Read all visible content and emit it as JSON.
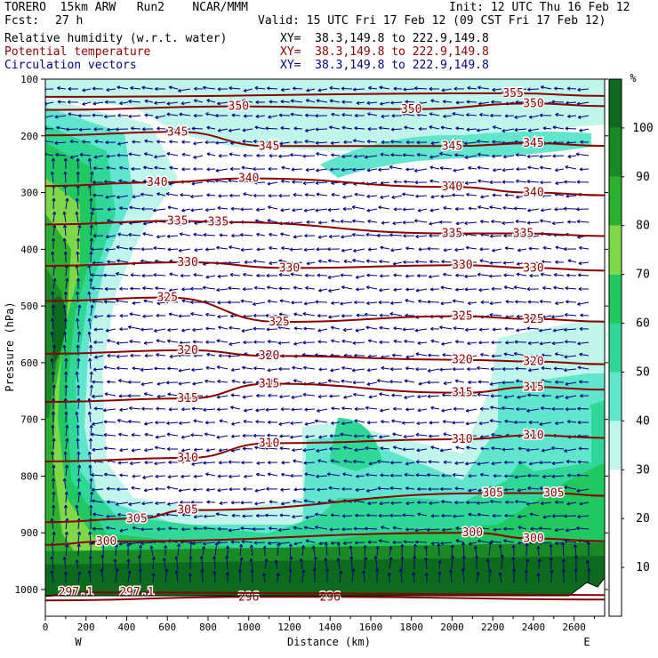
{
  "header": {
    "model": "TORERO  15km ARW   Run2    NCAR/MMM",
    "init": "Init: 12 UTC Thu 16 Feb 12",
    "fcst_label": "Fcst:",
    "fcst_value": "27 h",
    "valid": "Valid: 15 UTC Fri 17 Feb 12 (09 CST Fri 17 Feb 12)"
  },
  "fields": [
    {
      "name": "Relative humidity (w.r.t. water)",
      "xy": "XY=  38.3,149.8 to 222.9,149.8",
      "color": "#000000"
    },
    {
      "name": "Potential temperature",
      "xy": "XY=  38.3,149.8 to 222.9,149.8",
      "color": "#8b0000"
    },
    {
      "name": "Circulation vectors",
      "xy": "XY=  38.3,149.8 to 222.9,149.8",
      "color": "#00007f"
    }
  ],
  "chart_data": {
    "type": "heatmap",
    "xlabel": "Distance (km)",
    "ylabel": "Pressure (hPa)",
    "xlim": [
      0,
      2750
    ],
    "ylim": [
      1040,
      100
    ],
    "x_ticks": [
      "0",
      "200",
      "400",
      "600",
      "800",
      "1000",
      "1200",
      "1400",
      "1600",
      "1800",
      "2000",
      "2200",
      "2400",
      "2600"
    ],
    "y_ticks": [
      "100",
      "200",
      "300",
      "400",
      "500",
      "600",
      "700",
      "800",
      "900",
      "1000"
    ],
    "x_end_labels": {
      "left": "W",
      "right": "E"
    },
    "colorbar": {
      "unit": "%",
      "levels": [
        10,
        20,
        30,
        40,
        50,
        60,
        70,
        80,
        90,
        100
      ],
      "colors": [
        "#ffffff",
        "#ffffff",
        "#ffffff",
        "#bff5ea",
        "#60e6cc",
        "#30d898",
        "#20c860",
        "#7fd848",
        "#2cb030",
        "#1a8a24",
        "#0b6a1c"
      ]
    },
    "theta_isentropes": [
      {
        "value": 296,
        "labels": [
          [
            1000,
            1013
          ],
          [
            1400,
            1013
          ]
        ]
      },
      {
        "value": 297,
        "labels": [
          [
            150,
            1005
          ],
          [
            450,
            1005
          ]
        ],
        "label_text": "297.1"
      },
      {
        "value": 300,
        "labels": [
          [
            300,
            915
          ],
          [
            2100,
            900
          ],
          [
            2400,
            910
          ]
        ]
      },
      {
        "value": 305,
        "labels": [
          [
            450,
            875
          ],
          [
            700,
            860
          ],
          [
            2200,
            830
          ],
          [
            2500,
            830
          ]
        ]
      },
      {
        "value": 310,
        "labels": [
          [
            700,
            768
          ],
          [
            1100,
            742
          ],
          [
            2050,
            735
          ],
          [
            2400,
            728
          ]
        ]
      },
      {
        "value": 315,
        "labels": [
          [
            700,
            663
          ],
          [
            1100,
            637
          ],
          [
            2050,
            653
          ],
          [
            2400,
            643
          ]
        ]
      },
      {
        "value": 320,
        "labels": [
          [
            700,
            578
          ],
          [
            1100,
            588
          ],
          [
            2050,
            595
          ],
          [
            2400,
            598
          ]
        ]
      },
      {
        "value": 325,
        "labels": [
          [
            600,
            485
          ],
          [
            1150,
            528
          ],
          [
            2050,
            518
          ],
          [
            2400,
            523
          ]
        ]
      },
      {
        "value": 330,
        "labels": [
          [
            700,
            423
          ],
          [
            1200,
            433
          ],
          [
            2050,
            428
          ],
          [
            2400,
            433
          ]
        ]
      },
      {
        "value": 335,
        "labels": [
          [
            650,
            350
          ],
          [
            850,
            352
          ],
          [
            2000,
            372
          ],
          [
            2350,
            372
          ]
        ]
      },
      {
        "value": 340,
        "labels": [
          [
            550,
            282
          ],
          [
            1000,
            275
          ],
          [
            2000,
            290
          ],
          [
            2400,
            300
          ]
        ]
      },
      {
        "value": 345,
        "labels": [
          [
            650,
            193
          ],
          [
            1100,
            218
          ],
          [
            2000,
            218
          ],
          [
            2400,
            213
          ]
        ]
      },
      {
        "value": 350,
        "labels": [
          [
            950,
            148
          ],
          [
            1800,
            153
          ],
          [
            2400,
            143
          ]
        ]
      },
      {
        "value": 355,
        "labels": [
          [
            2300,
            125
          ]
        ]
      }
    ]
  },
  "colors": {
    "theta": "#8b0000",
    "vectors": "#00007f",
    "frame": "#000000"
  }
}
